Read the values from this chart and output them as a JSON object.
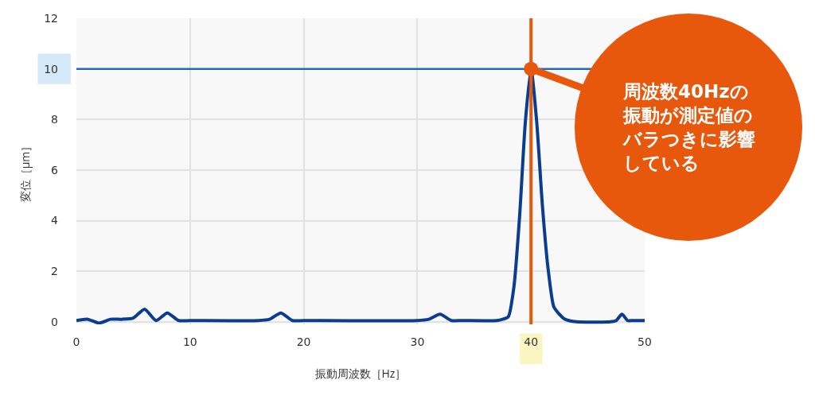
{
  "chart_data": {
    "type": "line",
    "xlabel": "振動周波数［Hz］",
    "ylabel": "変位［μm］",
    "xlim": [
      0,
      50
    ],
    "xticks": [
      0,
      10,
      20,
      30,
      40,
      50
    ],
    "ylim": [
      -0.1,
      12
    ],
    "yticks": [
      0,
      2,
      4,
      6,
      8,
      10,
      12
    ],
    "grid": true,
    "marker": "none",
    "line_style": "solid",
    "series": [
      {
        "color": "#0a3d8f",
        "x": [
          0,
          1,
          2,
          3,
          4,
          5,
          6,
          7,
          8,
          9,
          10,
          16,
          17,
          18,
          19,
          20,
          30,
          31,
          32,
          33,
          34,
          37,
          37.5,
          38,
          38.5,
          39,
          39.5,
          40,
          40.5,
          41,
          41.5,
          42,
          42.5,
          43,
          44,
          47,
          47.5,
          48,
          48.5,
          49,
          50
        ],
        "values": [
          0.05,
          0.1,
          -0.05,
          0.1,
          0.1,
          0.15,
          0.5,
          0.05,
          0.35,
          0.05,
          0.05,
          0.05,
          0.1,
          0.35,
          0.05,
          0.05,
          0.05,
          0.1,
          0.3,
          0.05,
          0.05,
          0.05,
          0.1,
          0.2,
          1.4,
          4.2,
          7.9,
          10,
          7.9,
          4.6,
          2.1,
          0.6,
          0.3,
          0.1,
          0,
          0,
          0.05,
          0.3,
          0.05,
          0.05,
          0.05
        ]
      }
    ],
    "ref_lines": [
      {
        "axis": "x",
        "value": 40,
        "color": "#e8580c"
      },
      {
        "axis": "y",
        "value": 10,
        "color": "#1f6bbf"
      }
    ],
    "annotations": [
      {
        "text": "周波数40Hzの振動が測定値のバラつきに影響している",
        "x": 40,
        "y": 10
      }
    ]
  }
}
